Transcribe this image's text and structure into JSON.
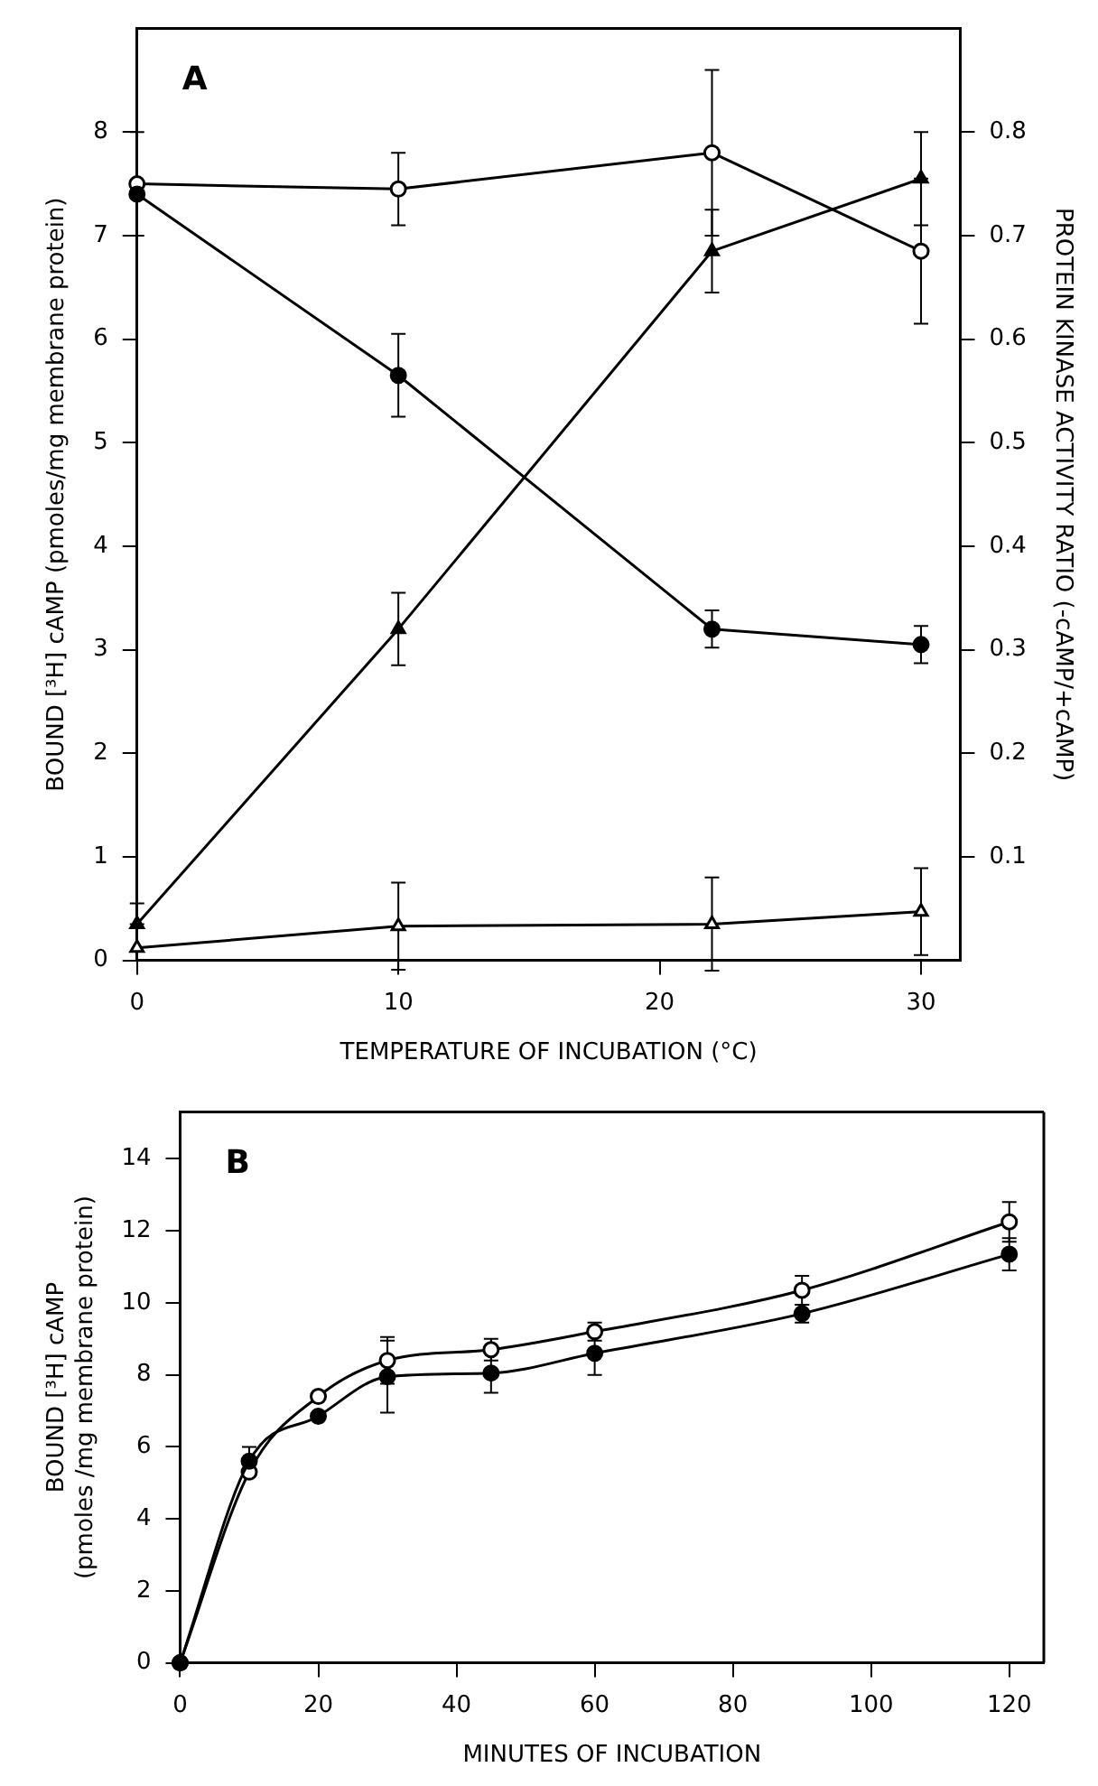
{
  "chart_data": [
    {
      "type": "line",
      "x": [
        0,
        10,
        22,
        30
      ],
      "xlim": [
        0,
        31.5
      ],
      "xticks": [
        0,
        10,
        20,
        30
      ],
      "ylim": [
        0,
        9
      ],
      "yticks": [
        0,
        1,
        2,
        3,
        4,
        5,
        6,
        7,
        8
      ],
      "y2lim": [
        0,
        0.9
      ],
      "y2ticks": [
        {
          "value": 0.1,
          "label": "0.1"
        },
        {
          "value": 0.2,
          "label": "0.2"
        },
        {
          "value": 0.3,
          "label": "0.3"
        },
        {
          "value": 0.4,
          "label": "0.4"
        },
        {
          "value": 0.5,
          "label": "0.5"
        },
        {
          "value": 0.6,
          "label": "0.6"
        },
        {
          "value": 0.7,
          "label": "0.7"
        },
        {
          "value": 0.8,
          "label": "0.8"
        }
      ],
      "xlabel": "TEMPERATURE OF INCUBATION (°C)",
      "ylabel": "BOUND [³H] cAMP (pmoles/mg membrane protein)",
      "y2label": "PROTEIN KINASE ACTIVITY RATIO (-cAMP/+cAMP)",
      "annotations": [
        "A"
      ],
      "grid": false,
      "legend": false,
      "line_style": "solid",
      "series": [
        {
          "color": "#000000",
          "marker": "circle",
          "values": [
            7.5,
            7.45,
            7.8,
            6.85
          ],
          "errors": [
            0.5,
            0.35,
            0.8,
            0.7
          ]
        },
        {
          "color": "#000000",
          "marker": "circle",
          "values": [
            7.4,
            5.65,
            3.2,
            3.05
          ],
          "errors": [
            null,
            0.4,
            0.18,
            0.18
          ]
        },
        {
          "color": "#000000",
          "marker": "triangle",
          "axis": "y2",
          "values": [
            0.035,
            0.32,
            0.685,
            0.755
          ],
          "errors": [
            [
              0.035,
              0.055
            ],
            0.035,
            0.04,
            0.045
          ]
        },
        {
          "color": "#000000",
          "marker": "triangle",
          "axis": "y2",
          "values": [
            0.012,
            0.033,
            0.035,
            0.047
          ],
          "errors": [
            null,
            0.042,
            0.045,
            0.042
          ]
        }
      ]
    },
    {
      "type": "line",
      "x": [
        0,
        10,
        20,
        30,
        45,
        60,
        90,
        120
      ],
      "xlim": [
        0,
        125
      ],
      "xticks": [
        0,
        20,
        40,
        60,
        80,
        100,
        120
      ],
      "ylim": [
        0,
        15.3
      ],
      "yticks": [
        0,
        2,
        4,
        6,
        8,
        10,
        12,
        14
      ],
      "xlabel": "MINUTES OF INCUBATION",
      "ylabel": "BOUND [³H] cAMP\n(pmoles /mg membrane protein)",
      "annotations": [
        "B"
      ],
      "grid": false,
      "legend": false,
      "line_style": "solid",
      "series": [
        {
          "color": "#000000",
          "marker": "circle",
          "values": [
            0,
            5.3,
            7.4,
            8.4,
            8.7,
            9.2,
            10.35,
            12.25
          ],
          "errors": [
            null,
            null,
            null,
            0.65,
            0.3,
            0.25,
            0.4,
            0.55
          ]
        },
        {
          "color": "#000000",
          "marker": "circle",
          "values": [
            0,
            5.6,
            6.85,
            7.95,
            8.05,
            8.6,
            9.7,
            11.35
          ],
          "errors": [
            null,
            0.4,
            null,
            1.0,
            0.55,
            0.6,
            0.25,
            0.45
          ]
        }
      ]
    }
  ]
}
